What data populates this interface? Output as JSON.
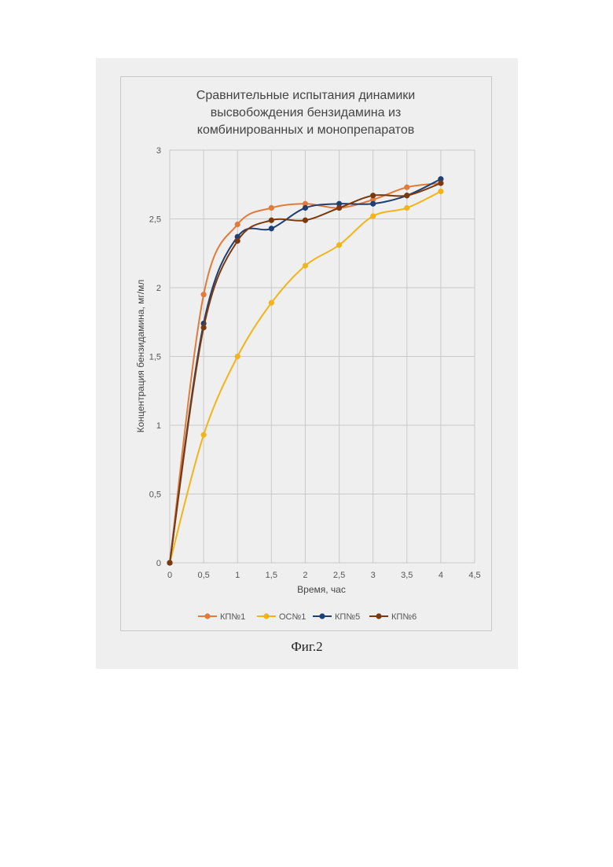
{
  "caption": "Фиг.2",
  "chart_data": {
    "type": "line",
    "smooth": true,
    "title_lines": [
      "Сравнительные испытания динамики",
      "высвобождения бензидамина из",
      "комбинированных и монопрепаратов"
    ],
    "xlabel": "Время, час",
    "ylabel": "Концентрация бензидамина, мг/мл",
    "xlim": [
      0,
      4.5
    ],
    "ylim": [
      0,
      3
    ],
    "x_ticks": [
      "0",
      "0,5",
      "1",
      "1,5",
      "2",
      "2,5",
      "3",
      "3,5",
      "4",
      "4,5"
    ],
    "y_ticks": [
      "0",
      "0,5",
      "1",
      "1,5",
      "2",
      "2,5",
      "3"
    ],
    "grid": true,
    "legend_position": "bottom",
    "x": [
      0,
      0.5,
      1,
      1.5,
      2,
      2.5,
      3,
      3.5,
      4
    ],
    "series": [
      {
        "name": "КП№1",
        "color": "#e07b39",
        "values": [
          0,
          1.95,
          2.46,
          2.58,
          2.61,
          2.58,
          2.64,
          2.73,
          2.76
        ]
      },
      {
        "name": "ОС№1",
        "color": "#f2b418",
        "values": [
          0,
          0.93,
          1.5,
          1.89,
          2.16,
          2.31,
          2.52,
          2.58,
          2.7
        ]
      },
      {
        "name": "КП№5",
        "color": "#1f3f73",
        "values": [
          0,
          1.74,
          2.37,
          2.43,
          2.58,
          2.61,
          2.61,
          2.67,
          2.79
        ]
      },
      {
        "name": "КП№6",
        "color": "#7a3a0e",
        "values": [
          0,
          1.71,
          2.34,
          2.49,
          2.49,
          2.58,
          2.67,
          2.67,
          2.76
        ]
      }
    ]
  }
}
